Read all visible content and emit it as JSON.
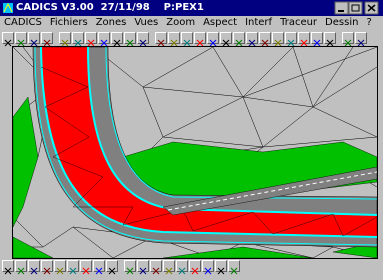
{
  "window": {
    "title": "CADICS V3.00  27/11/98    P:PEX1"
  },
  "menu": [
    "CADICS",
    "Fichiers",
    "Zones",
    "Vues",
    "Zoom",
    "Aspect",
    "Interf",
    "Traceur",
    "Dessin",
    "?"
  ]
}
